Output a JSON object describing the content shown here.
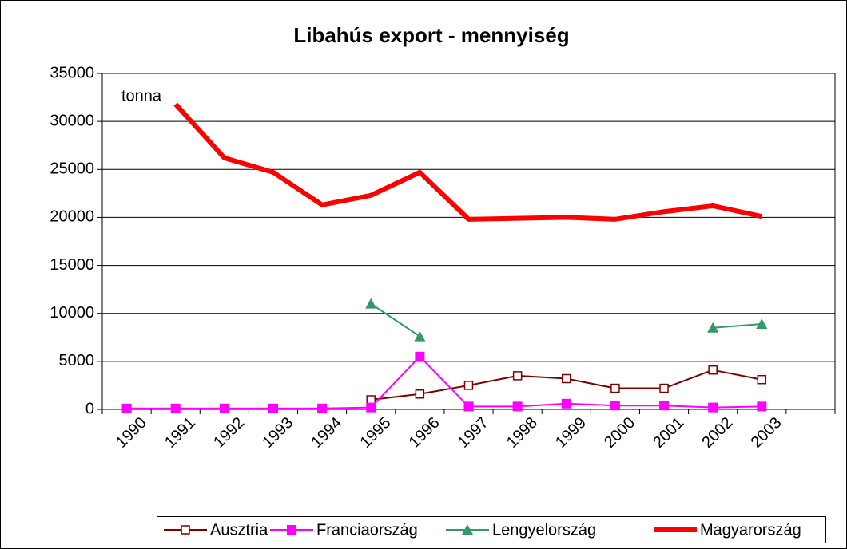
{
  "chart_data": {
    "type": "line",
    "title": "Libahús export - mennyiség",
    "annotation": "tonna",
    "categories": [
      "1990",
      "1991",
      "1992",
      "1993",
      "1994",
      "1995",
      "1996",
      "1997",
      "1998",
      "1999",
      "2000",
      "2001",
      "2002",
      "2003",
      null
    ],
    "series": [
      {
        "name": "Ausztria",
        "color": "#800000",
        "marker": "square-open",
        "values": [
          null,
          null,
          null,
          null,
          null,
          1000,
          1600,
          2500,
          3500,
          3200,
          2200,
          2200,
          4100,
          3100,
          null
        ]
      },
      {
        "name": "Franciaország",
        "color": "#ff00ff",
        "marker": "square",
        "values": [
          100,
          100,
          100,
          100,
          100,
          200,
          5500,
          300,
          300,
          600,
          400,
          400,
          200,
          300,
          null
        ]
      },
      {
        "name": "Lengyelország",
        "color": "#339966",
        "marker": "triangle",
        "values": [
          null,
          null,
          null,
          null,
          null,
          11000,
          7600,
          null,
          null,
          null,
          null,
          null,
          8500,
          8900,
          null
        ]
      },
      {
        "name": "Magyarország",
        "color": "#ff0000",
        "marker": "none",
        "values": [
          null,
          31800,
          26200,
          24700,
          21300,
          22300,
          24700,
          19800,
          19900,
          20000,
          19800,
          20600,
          21200,
          20100,
          null
        ]
      }
    ],
    "ylim": [
      0,
      35000
    ],
    "yticks": [
      0,
      5000,
      10000,
      15000,
      20000,
      25000,
      30000,
      35000
    ],
    "grid": true,
    "legend": "bottom"
  }
}
